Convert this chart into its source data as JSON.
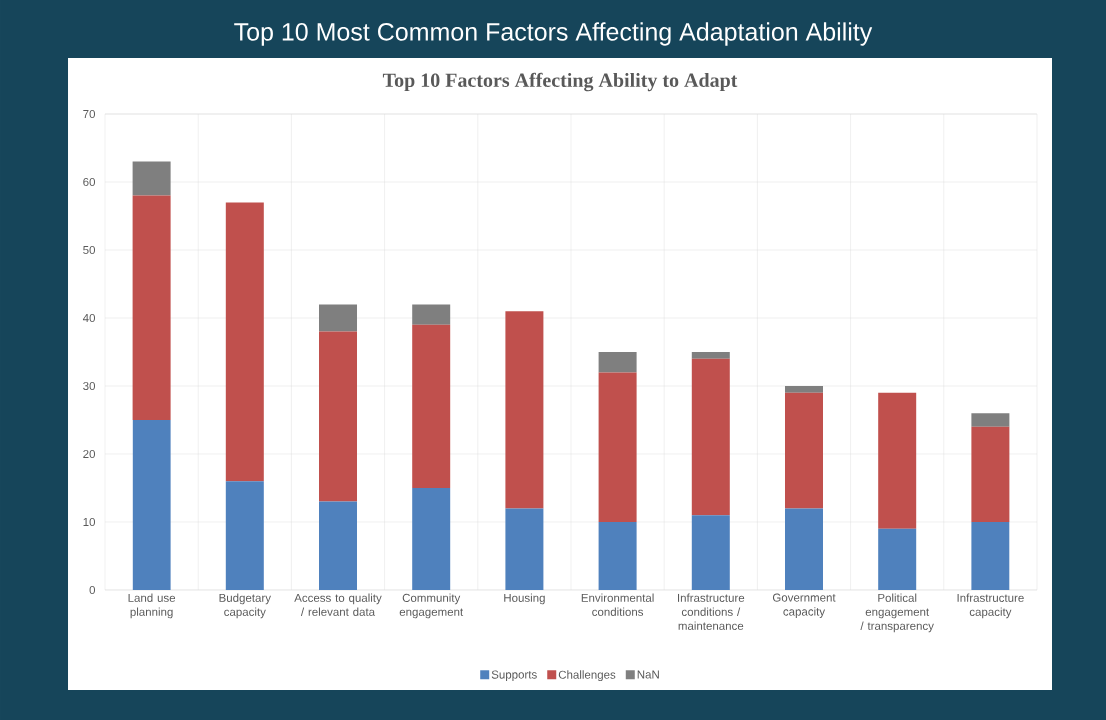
{
  "chart_data": {
    "type": "bar",
    "stacked": true,
    "title": "Top 10 Most Common Factors Affecting Adaptation Ability",
    "subtitle": "Top 10 Factors Affecting Ability to Adapt",
    "categories": [
      "Land use planning",
      "Budgetary capacity",
      "Access to quality / relevant data",
      "Community engagement",
      "Housing",
      "Environmental conditions",
      "Infrastructure conditions / maintenance",
      "Government capacity",
      "Political engagement / transparency",
      "Infrastructure capacity"
    ],
    "series": [
      {
        "name": "Supports",
        "color": "#4f81bd",
        "values": [
          25,
          16,
          13,
          15,
          12,
          10,
          11,
          12,
          9,
          10
        ]
      },
      {
        "name": "Challenges",
        "color": "#c0504d",
        "values": [
          33,
          41,
          25,
          24,
          29,
          22,
          23,
          17,
          20,
          14
        ]
      },
      {
        "name": "NaN",
        "color": "#7f7f7f",
        "values": [
          5,
          0,
          4,
          3,
          0,
          3,
          1,
          1,
          0,
          2
        ]
      }
    ],
    "ylim": [
      0,
      70
    ],
    "yticks": [
      0,
      10,
      20,
      30,
      40,
      50,
      60,
      70
    ],
    "grid": true,
    "legend": "bottom"
  }
}
